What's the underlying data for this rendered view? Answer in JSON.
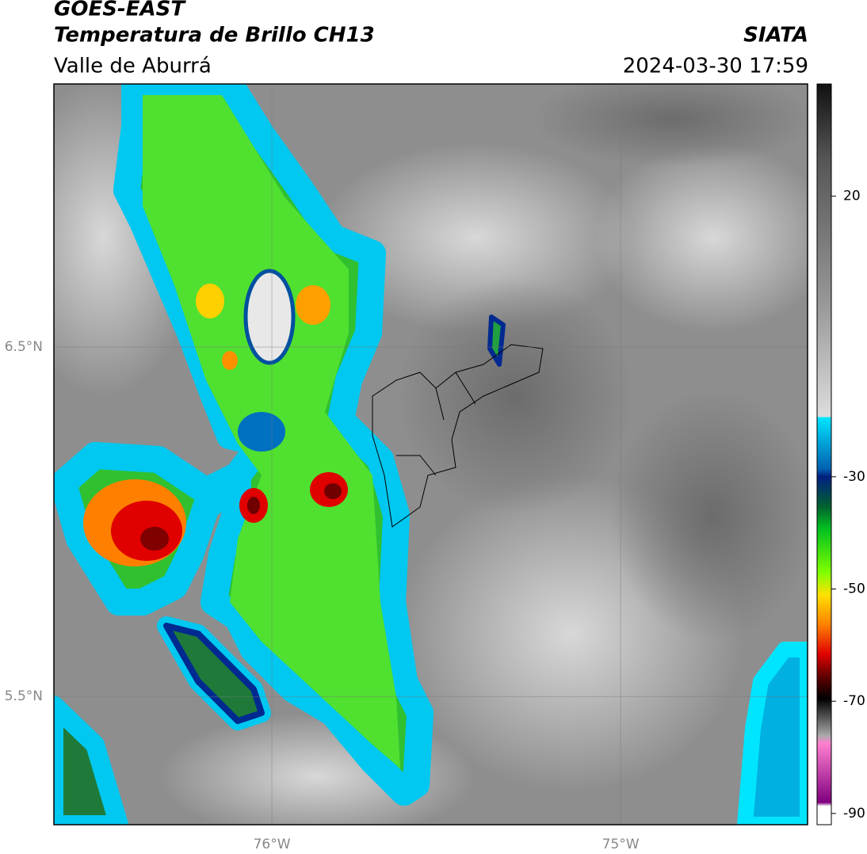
{
  "header": {
    "title": "GOES-EAST",
    "subtitle": "Temperatura de Brillo CH13",
    "region": "Valle de Aburrá",
    "source": "SIATA",
    "timestamp": "2024-03-30 17:59"
  },
  "map": {
    "lon_range": [
      -76.625,
      -74.464
    ],
    "lat_range": [
      5.133,
      7.253
    ],
    "grid": true,
    "lon_ticks": [
      {
        "value": -76,
        "label": "76°W"
      },
      {
        "value": -75,
        "label": "75°W"
      }
    ],
    "lat_ticks": [
      {
        "value": 6.5,
        "label": "6.5°N"
      },
      {
        "value": 5.5,
        "label": "5.5°N"
      }
    ]
  },
  "colorbar": {
    "range": [
      -92,
      40
    ],
    "ticks": [
      20,
      -30,
      -50,
      -70,
      -90
    ]
  }
}
